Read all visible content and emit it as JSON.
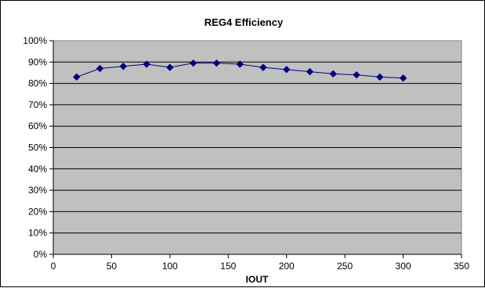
{
  "chart_data": {
    "type": "scatter",
    "title": "REG4 Efficiency",
    "xlabel": "IOUT",
    "ylabel": "",
    "xlim": [
      0,
      350
    ],
    "ylim": [
      0,
      100
    ],
    "x_ticks": [
      "0",
      "50",
      "100",
      "150",
      "200",
      "250",
      "300",
      "350"
    ],
    "y_ticks": [
      "0%",
      "10%",
      "20%",
      "30%",
      "40%",
      "50%",
      "60%",
      "70%",
      "80%",
      "90%",
      "100%"
    ],
    "grid": "horizontal",
    "legend": "none",
    "plot_background": "#c0c0c0",
    "series": [
      {
        "color": "#000080",
        "points": [
          {
            "x": 20,
            "y": 83
          },
          {
            "x": 40,
            "y": 87
          },
          {
            "x": 60,
            "y": 88
          },
          {
            "x": 80,
            "y": 89
          },
          {
            "x": 100,
            "y": 87.5
          },
          {
            "x": 120,
            "y": 89.5
          },
          {
            "x": 140,
            "y": 89.5
          },
          {
            "x": 160,
            "y": 89
          },
          {
            "x": 180,
            "y": 87.5
          },
          {
            "x": 200,
            "y": 86.5
          },
          {
            "x": 220,
            "y": 85.5
          },
          {
            "x": 240,
            "y": 84.5
          },
          {
            "x": 260,
            "y": 84
          },
          {
            "x": 280,
            "y": 83
          },
          {
            "x": 300,
            "y": 82.5
          }
        ]
      }
    ]
  }
}
